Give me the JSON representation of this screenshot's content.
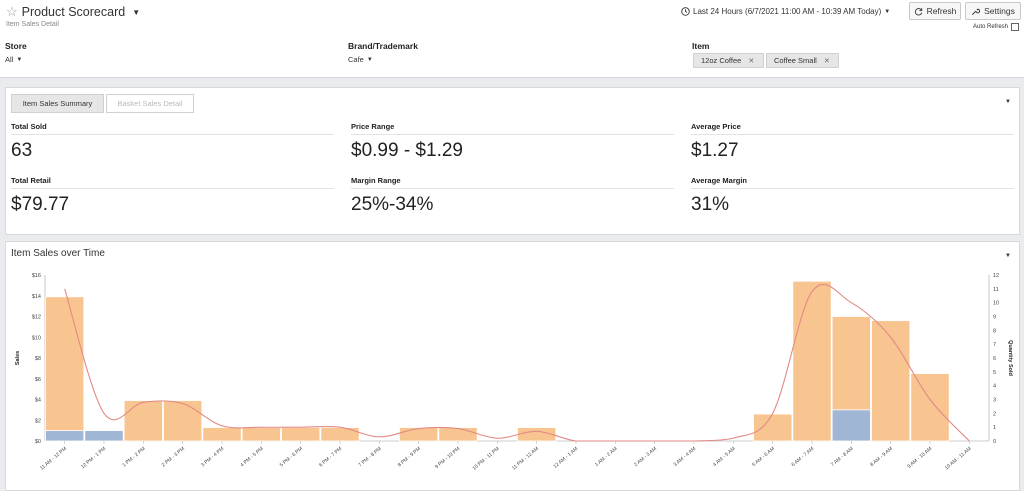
{
  "header": {
    "title": "Product Scorecard",
    "subtitle": "Item Sales Detail",
    "time_range": "Last 24 Hours (6/7/2021 11:00 AM - 10:39 AM Today)",
    "refresh_label": "Refresh",
    "settings_label": "Settings",
    "auto_refresh_label": "Auto Refresh"
  },
  "filters": {
    "store": {
      "label": "Store",
      "value": "All"
    },
    "brand": {
      "label": "Brand/Trademark",
      "value": "Cafe"
    },
    "item": {
      "label": "Item",
      "tags": [
        "12oz Coffee",
        "Coffee Small"
      ]
    }
  },
  "tabs": [
    "Item Sales Summary",
    "Basket Sales Detail"
  ],
  "metrics": {
    "total_sold": {
      "label": "Total Sold",
      "value": "63"
    },
    "price_range": {
      "label": "Price Range",
      "value": "$0.99 - $1.29"
    },
    "average_price": {
      "label": "Average Price",
      "value": "$1.27"
    },
    "total_retail": {
      "label": "Total Retail",
      "value": "$79.77"
    },
    "margin_range": {
      "label": "Margin Range",
      "value": "25%-34%"
    },
    "average_margin": {
      "label": "Average Margin",
      "value": "31%"
    }
  },
  "chart_section": {
    "title": "Item Sales over Time"
  },
  "chart_data": {
    "type": "bar",
    "title": "Item Sales over Time",
    "ylabel": "Sales",
    "y2label": "Quantity Sold",
    "ylim": [
      0,
      16
    ],
    "y2lim": [
      0,
      12
    ],
    "yticks": [
      "$0",
      "$2",
      "$4",
      "$6",
      "$8",
      "$10",
      "$12",
      "$14",
      "$16"
    ],
    "y2ticks": [
      "0",
      "1",
      "2",
      "3",
      "4",
      "5",
      "6",
      "7",
      "8",
      "9",
      "10",
      "11",
      "12"
    ],
    "categories": [
      "11 AM - 12 PM",
      "12 PM - 1 PM",
      "1 PM - 2 PM",
      "2 PM - 3 PM",
      "3 PM - 4 PM",
      "4 PM - 5 PM",
      "5 PM - 6 PM",
      "6 PM - 7 PM",
      "7 PM - 8 PM",
      "8 PM - 9 PM",
      "9 PM - 10 PM",
      "10 PM - 11 PM",
      "11 PM - 12 AM",
      "12 AM - 1 AM",
      "1 AM - 2 AM",
      "2 AM - 3 AM",
      "3 AM - 4 AM",
      "4 AM - 5 AM",
      "5 AM - 6 AM",
      "6 AM - 7 AM",
      "7 AM - 8 AM",
      "8 AM - 9 AM",
      "9 AM - 10 AM",
      "10 AM - 11 AM"
    ],
    "series": [
      {
        "values": [
          13.9,
          1.0,
          3.9,
          3.9,
          1.3,
          1.3,
          1.3,
          1.3,
          0,
          1.3,
          1.3,
          0,
          1.3,
          0,
          0,
          0,
          0,
          0,
          2.6,
          15.4,
          12.0,
          11.6,
          6.5,
          0
        ],
        "color": "#f8c48f"
      },
      {
        "values": [
          1.0,
          1.0,
          0,
          0,
          0,
          0,
          0,
          0,
          0,
          0,
          0,
          0,
          0,
          0,
          0,
          0,
          0,
          0,
          0,
          0,
          3.0,
          0,
          0,
          0
        ],
        "color": "#9fb7d4"
      },
      {
        "type": "line",
        "axis": "right",
        "values": [
          11,
          2,
          2.8,
          2.7,
          1.1,
          1,
          1,
          1,
          0.3,
          0.9,
          0.9,
          0.2,
          0.7,
          0,
          0,
          0,
          0,
          0.2,
          2,
          10.8,
          10,
          7.5,
          3,
          0
        ],
        "color": "#e28a86"
      }
    ]
  }
}
